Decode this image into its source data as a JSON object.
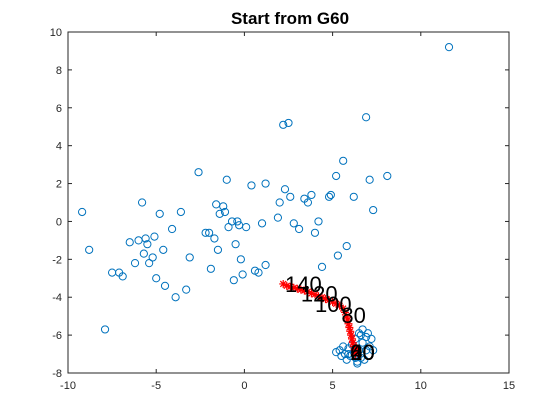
{
  "chart_data": {
    "type": "scatter",
    "title": "Start from G60",
    "xlabel": "",
    "ylabel": "",
    "xlim": [
      -10,
      15
    ],
    "ylim": [
      -8,
      10
    ],
    "xticks": [
      -10,
      -5,
      0,
      5,
      10,
      15
    ],
    "yticks": [
      -8,
      -6,
      -4,
      -2,
      0,
      2,
      4,
      6,
      8,
      10
    ],
    "grid": false,
    "colors": {
      "circles": "#0072BD",
      "path": "#FF0000",
      "axis": "#262626"
    },
    "series": [
      {
        "marker": "circle",
        "points": [
          [
            -9.2,
            0.5
          ],
          [
            -8.8,
            -1.5
          ],
          [
            -7.9,
            -5.7
          ],
          [
            -7.5,
            -2.7
          ],
          [
            -7.1,
            -2.7
          ],
          [
            -6.9,
            -2.9
          ],
          [
            -6.5,
            -1.1
          ],
          [
            -6.2,
            -2.2
          ],
          [
            -6.0,
            -1.0
          ],
          [
            -5.8,
            1.0
          ],
          [
            -5.7,
            -1.7
          ],
          [
            -5.6,
            -0.9
          ],
          [
            -5.5,
            -1.2
          ],
          [
            -5.4,
            -2.2
          ],
          [
            -5.2,
            -1.9
          ],
          [
            -5.1,
            -0.8
          ],
          [
            -5.0,
            -3.0
          ],
          [
            -4.8,
            0.4
          ],
          [
            -4.6,
            -1.5
          ],
          [
            -4.5,
            -3.4
          ],
          [
            -4.1,
            -0.4
          ],
          [
            -3.9,
            -4.0
          ],
          [
            -3.6,
            0.5
          ],
          [
            -3.3,
            -3.6
          ],
          [
            -3.1,
            -1.9
          ],
          [
            -2.6,
            2.6
          ],
          [
            -2.2,
            -0.6
          ],
          [
            -2.0,
            -0.6
          ],
          [
            -1.9,
            -2.5
          ],
          [
            -1.7,
            -0.9
          ],
          [
            -1.6,
            0.9
          ],
          [
            -1.5,
            -1.5
          ],
          [
            -1.4,
            0.4
          ],
          [
            -1.2,
            0.8
          ],
          [
            -1.1,
            0.5
          ],
          [
            -1.0,
            2.2
          ],
          [
            -0.9,
            -0.3
          ],
          [
            -0.7,
            -0.0
          ],
          [
            -0.6,
            -3.1
          ],
          [
            -0.5,
            -1.2
          ],
          [
            -0.4,
            -0.0
          ],
          [
            -0.3,
            -0.2
          ],
          [
            -0.2,
            -2.0
          ],
          [
            -0.1,
            -2.8
          ],
          [
            0.1,
            -0.3
          ],
          [
            0.4,
            1.9
          ],
          [
            0.6,
            -2.6
          ],
          [
            1.0,
            -0.1
          ],
          [
            1.2,
            -2.3
          ],
          [
            1.9,
            0.2
          ],
          [
            2.2,
            5.1
          ],
          [
            2.3,
            1.7
          ],
          [
            2.5,
            5.2
          ],
          [
            2.6,
            1.3
          ],
          [
            2.8,
            -0.1
          ],
          [
            3.1,
            -0.4
          ],
          [
            3.4,
            1.2
          ],
          [
            3.6,
            1.0
          ],
          [
            3.8,
            1.4
          ],
          [
            4.0,
            -0.6
          ],
          [
            4.2,
            0.0
          ],
          [
            4.4,
            -2.4
          ],
          [
            4.8,
            1.3
          ],
          [
            4.9,
            1.4
          ],
          [
            5.2,
            2.4
          ],
          [
            5.3,
            -1.8
          ],
          [
            5.6,
            3.2
          ],
          [
            5.8,
            -1.3
          ],
          [
            6.2,
            1.3
          ],
          [
            6.9,
            5.5
          ],
          [
            7.1,
            2.2
          ],
          [
            7.3,
            0.6
          ],
          [
            8.1,
            2.4
          ],
          [
            11.6,
            9.2
          ],
          [
            1.2,
            2.0
          ],
          [
            0.8,
            -2.7
          ],
          [
            2.0,
            1.0
          ],
          [
            5.2,
            -6.9
          ],
          [
            5.4,
            -6.8
          ],
          [
            5.5,
            -7.1
          ],
          [
            5.6,
            -6.6
          ],
          [
            5.7,
            -7.0
          ],
          [
            5.8,
            -7.3
          ],
          [
            5.9,
            -6.7
          ],
          [
            6.0,
            -7.1
          ],
          [
            6.1,
            -6.5
          ],
          [
            6.2,
            -6.9
          ],
          [
            6.3,
            -7.2
          ],
          [
            6.3,
            -6.2
          ],
          [
            6.4,
            -7.5
          ],
          [
            6.5,
            -6.8
          ],
          [
            6.5,
            -5.9
          ],
          [
            6.6,
            -7.2
          ],
          [
            6.7,
            -6.4
          ],
          [
            6.7,
            -5.7
          ],
          [
            6.8,
            -7.3
          ],
          [
            6.9,
            -6.1
          ],
          [
            6.9,
            -6.8
          ],
          [
            7.0,
            -5.9
          ],
          [
            7.1,
            -6.6
          ],
          [
            7.2,
            -6.2
          ],
          [
            7.3,
            -6.8
          ],
          [
            6.4,
            -7.4
          ],
          [
            6.6,
            -6.0
          ],
          [
            5.9,
            -7.0
          ]
        ]
      },
      {
        "marker": "star",
        "points": [
          [
            2.2,
            -3.3
          ],
          [
            2.4,
            -3.4
          ],
          [
            2.6,
            -3.45
          ],
          [
            2.8,
            -3.5
          ],
          [
            3.0,
            -3.55
          ],
          [
            3.2,
            -3.6
          ],
          [
            3.4,
            -3.65
          ],
          [
            3.6,
            -3.7
          ],
          [
            3.8,
            -3.8
          ],
          [
            4.0,
            -3.85
          ],
          [
            4.2,
            -3.95
          ],
          [
            4.4,
            -4.0
          ],
          [
            4.6,
            -4.1
          ],
          [
            4.8,
            -4.15
          ],
          [
            5.0,
            -4.25
          ],
          [
            5.2,
            -4.35
          ],
          [
            5.4,
            -4.45
          ],
          [
            5.6,
            -4.6
          ],
          [
            5.7,
            -4.8
          ],
          [
            5.8,
            -5.0
          ],
          [
            5.85,
            -5.2
          ],
          [
            5.9,
            -5.4
          ],
          [
            5.95,
            -5.6
          ],
          [
            6.0,
            -5.8
          ],
          [
            6.05,
            -6.0
          ],
          [
            6.1,
            -6.2
          ],
          [
            6.15,
            -6.4
          ],
          [
            6.2,
            -6.6
          ],
          [
            6.25,
            -6.8
          ],
          [
            6.3,
            -7.0
          ],
          [
            6.3,
            -6.9
          ],
          [
            6.35,
            -6.7
          ]
        ]
      }
    ],
    "annotations": [
      {
        "text": "140",
        "x": 2.3,
        "y": -3.3
      },
      {
        "text": "120",
        "x": 3.2,
        "y": -3.8
      },
      {
        "text": "100",
        "x": 4.0,
        "y": -4.35
      },
      {
        "text": "80",
        "x": 5.5,
        "y": -4.95
      },
      {
        "text": "60",
        "x": 6.0,
        "y": -6.9
      },
      {
        "text": "40",
        "x": 6.0,
        "y": -6.9
      },
      {
        "text": "20",
        "x": 6.0,
        "y": -6.9
      },
      {
        "text": "0",
        "x": 6.0,
        "y": -6.9
      }
    ]
  }
}
